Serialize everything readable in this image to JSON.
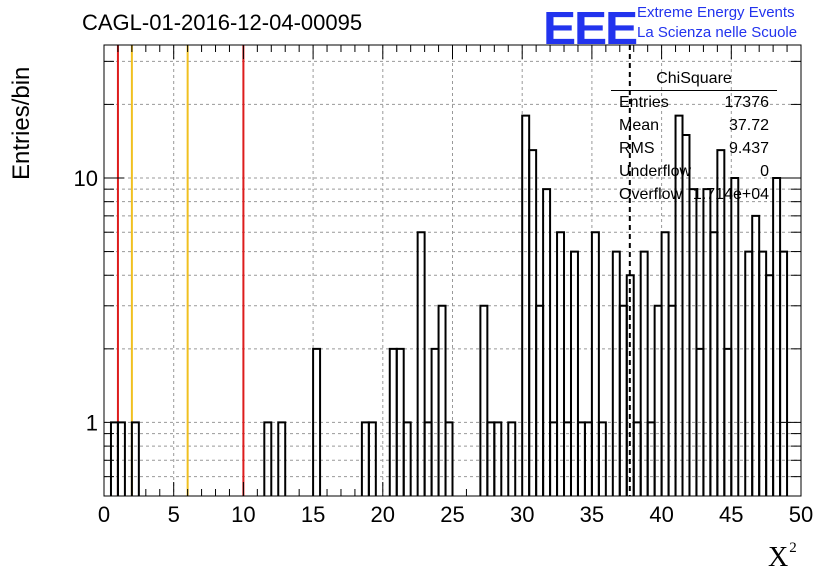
{
  "header": {
    "title": "CAGL-01-2016-12-04-00095",
    "logo_text": "EEE",
    "logo_line1": "Extreme Energy Events",
    "logo_line2": "La Scienza nelle Scuole"
  },
  "stats": {
    "title": "ChiSquare",
    "rows": [
      {
        "label": "Entries",
        "value": "17376"
      },
      {
        "label": "Mean",
        "value": "37.72"
      },
      {
        "label": "RMS",
        "value": "9.437"
      },
      {
        "label": "Underflow",
        "value": "0"
      },
      {
        "label": "Overflow",
        "value": "1.714e+04"
      }
    ]
  },
  "chart_data": {
    "type": "histogram",
    "title": "CAGL-01-2016-12-04-00095",
    "xlabel": "X",
    "xlabel_sup": "2",
    "ylabel": "Entries/bin",
    "xlim": [
      0,
      50
    ],
    "ylim": [
      0.5,
      35
    ],
    "yscale": "log",
    "grid": true,
    "bin_width": 0.5,
    "x_ticks": [
      0,
      5,
      10,
      15,
      20,
      25,
      30,
      35,
      40,
      45,
      50
    ],
    "y_ticks": [
      1,
      10
    ],
    "bins": [
      {
        "x": 0.5,
        "y": 1
      },
      {
        "x": 1.0,
        "y": 1
      },
      {
        "x": 2.0,
        "y": 1
      },
      {
        "x": 11.5,
        "y": 1
      },
      {
        "x": 12.5,
        "y": 1
      },
      {
        "x": 15.0,
        "y": 2
      },
      {
        "x": 18.5,
        "y": 1
      },
      {
        "x": 19.0,
        "y": 1
      },
      {
        "x": 20.5,
        "y": 2
      },
      {
        "x": 21.0,
        "y": 2
      },
      {
        "x": 21.5,
        "y": 1
      },
      {
        "x": 22.5,
        "y": 6
      },
      {
        "x": 23.0,
        "y": 1
      },
      {
        "x": 23.5,
        "y": 2
      },
      {
        "x": 24.0,
        "y": 3
      },
      {
        "x": 24.5,
        "y": 1
      },
      {
        "x": 27.0,
        "y": 3
      },
      {
        "x": 27.5,
        "y": 1
      },
      {
        "x": 28.0,
        "y": 1
      },
      {
        "x": 29.0,
        "y": 1
      },
      {
        "x": 30.0,
        "y": 18
      },
      {
        "x": 30.5,
        "y": 13
      },
      {
        "x": 31.0,
        "y": 3
      },
      {
        "x": 31.5,
        "y": 9
      },
      {
        "x": 32.0,
        "y": 1
      },
      {
        "x": 32.5,
        "y": 6
      },
      {
        "x": 33.0,
        "y": 1
      },
      {
        "x": 33.5,
        "y": 5
      },
      {
        "x": 34.0,
        "y": 1
      },
      {
        "x": 34.5,
        "y": 1
      },
      {
        "x": 35.0,
        "y": 6
      },
      {
        "x": 35.5,
        "y": 1
      },
      {
        "x": 36.5,
        "y": 5
      },
      {
        "x": 37.0,
        "y": 3
      },
      {
        "x": 37.5,
        "y": 4
      },
      {
        "x": 38.0,
        "y": 1
      },
      {
        "x": 38.5,
        "y": 5
      },
      {
        "x": 39.0,
        "y": 1
      },
      {
        "x": 39.5,
        "y": 3
      },
      {
        "x": 40.0,
        "y": 6
      },
      {
        "x": 40.5,
        "y": 3
      },
      {
        "x": 41.0,
        "y": 18
      },
      {
        "x": 41.5,
        "y": 15
      },
      {
        "x": 42.0,
        "y": 9
      },
      {
        "x": 42.5,
        "y": 2
      },
      {
        "x": 43.0,
        "y": 9
      },
      {
        "x": 43.5,
        "y": 6
      },
      {
        "x": 44.0,
        "y": 13
      },
      {
        "x": 44.5,
        "y": 2
      },
      {
        "x": 45.0,
        "y": 10
      },
      {
        "x": 46.0,
        "y": 5
      },
      {
        "x": 46.5,
        "y": 7
      },
      {
        "x": 47.0,
        "y": 5
      },
      {
        "x": 47.5,
        "y": 4
      },
      {
        "x": 48.0,
        "y": 10
      },
      {
        "x": 48.5,
        "y": 5
      }
    ],
    "reference_lines": [
      {
        "x": 1,
        "color": "#dd1c1c",
        "style": "solid"
      },
      {
        "x": 2,
        "color": "#f0c020",
        "style": "solid"
      },
      {
        "x": 6,
        "color": "#f0c020",
        "style": "solid"
      },
      {
        "x": 10,
        "color": "#dd1c1c",
        "style": "solid"
      },
      {
        "x": 37.72,
        "color": "#000000",
        "style": "dashed"
      }
    ],
    "legend_position": "top-right"
  }
}
